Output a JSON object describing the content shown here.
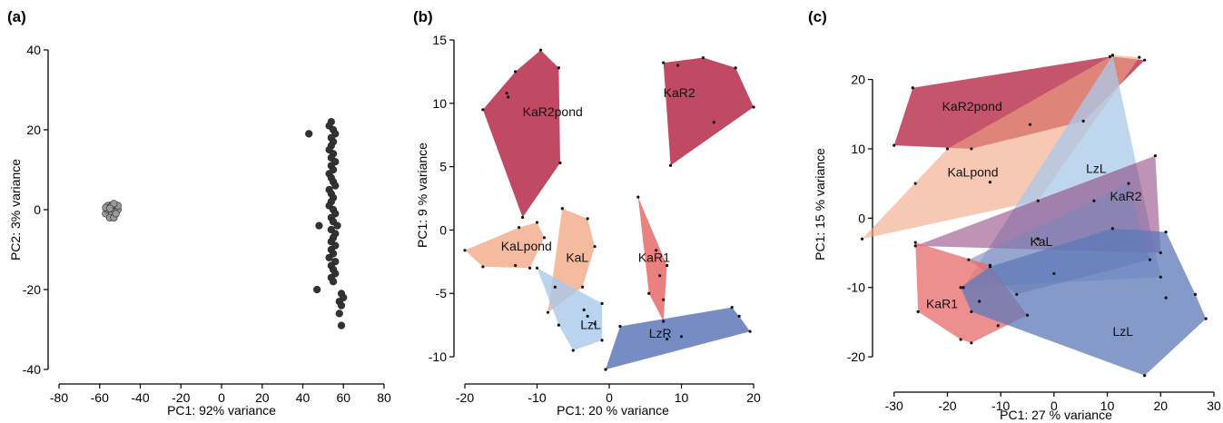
{
  "chart_data": [
    {
      "panel": "(a)",
      "type": "scatter",
      "xlabel": "PC1: 92% variance",
      "ylabel": "PC2: 3% variance",
      "xlim": [
        -80,
        80
      ],
      "ylim": [
        -40,
        40
      ],
      "xticks": [
        -80,
        -60,
        -40,
        -20,
        0,
        20,
        40,
        60,
        80
      ],
      "yticks": [
        -40,
        -20,
        0,
        20,
        40
      ],
      "series": [
        {
          "color": "#999999",
          "points": [
            [
              -57,
              -1
            ],
            [
              -56,
              0
            ],
            [
              -55,
              1
            ],
            [
              -54,
              -1
            ],
            [
              -53,
              0
            ],
            [
              -52,
              1
            ],
            [
              -51,
              0
            ],
            [
              -55,
              -2
            ],
            [
              -53,
              -2
            ],
            [
              -56,
              1
            ],
            [
              -54,
              1
            ],
            [
              -52,
              -1
            ],
            [
              -51,
              1
            ],
            [
              -57,
              0.5
            ],
            [
              -53,
              1.5
            ],
            [
              -55,
              0.3
            ]
          ]
        },
        {
          "color": "#333333",
          "points": [
            [
              54,
              22
            ],
            [
              53,
              21
            ],
            [
              55,
              20
            ],
            [
              56,
              19
            ],
            [
              43,
              19
            ],
            [
              54,
              18
            ],
            [
              55,
              17
            ],
            [
              54,
              16
            ],
            [
              53,
              15
            ],
            [
              55,
              14
            ],
            [
              54,
              13
            ],
            [
              56,
              12
            ],
            [
              54,
              11
            ],
            [
              55,
              10
            ],
            [
              53,
              9
            ],
            [
              54,
              8
            ],
            [
              55,
              7
            ],
            [
              56,
              6
            ],
            [
              53,
              5
            ],
            [
              54,
              4
            ],
            [
              55,
              3
            ],
            [
              54,
              2
            ],
            [
              53,
              1
            ],
            [
              55,
              0
            ],
            [
              56,
              -1
            ],
            [
              54,
              -2
            ],
            [
              55,
              -3
            ],
            [
              57,
              -4
            ],
            [
              48,
              -4
            ],
            [
              54,
              -5
            ],
            [
              56,
              -6
            ],
            [
              55,
              -7
            ],
            [
              54,
              -8
            ],
            [
              56,
              -9
            ],
            [
              54,
              -10
            ],
            [
              55,
              -11
            ],
            [
              53,
              -12
            ],
            [
              56,
              -13
            ],
            [
              54,
              -14
            ],
            [
              55,
              -15
            ],
            [
              56,
              -16
            ],
            [
              54,
              -17
            ],
            [
              55,
              -18
            ],
            [
              47,
              -20
            ],
            [
              59,
              -21
            ],
            [
              60,
              -22
            ],
            [
              58,
              -23
            ],
            [
              59,
              -24
            ],
            [
              58,
              -26
            ],
            [
              59,
              -29
            ]
          ]
        }
      ]
    },
    {
      "panel": "(b)",
      "type": "scatter",
      "xlabel": "PC1:  20 % variance",
      "ylabel": "PC1:  9 % variance",
      "xlim": [
        -20,
        21
      ],
      "ylim": [
        -11,
        15
      ],
      "xticks": [
        -20,
        -10,
        0,
        10,
        20
      ],
      "yticks": [
        -10,
        -5,
        0,
        5,
        10,
        15
      ],
      "groups": [
        {
          "name": "KaR2pond",
          "label": "KaR2pond",
          "label_pos": [
            -12,
            9
          ],
          "color": "#b52a48",
          "opacity": 0.85,
          "points": [
            [
              -17.5,
              9.5
            ],
            [
              -13,
              12.5
            ],
            [
              -9.5,
              14.2
            ],
            [
              -7,
              12.8
            ],
            [
              -6.8,
              5.3
            ],
            [
              -12,
              1
            ],
            [
              -14.2,
              10.8
            ],
            [
              -14,
              10.5
            ]
          ]
        },
        {
          "name": "KaR2",
          "label": "KaR2",
          "label_pos": [
            7.5,
            10.5
          ],
          "color": "#b52a48",
          "opacity": 0.85,
          "points": [
            [
              7.5,
              13.2
            ],
            [
              9.5,
              13
            ],
            [
              13,
              13.6
            ],
            [
              17.5,
              12.8
            ],
            [
              20,
              9.7
            ],
            [
              14.5,
              8.5
            ],
            [
              8.5,
              5.1
            ]
          ]
        },
        {
          "name": "KaLpond",
          "label": "KaLpond",
          "label_pos": [
            -15,
            -1.6
          ],
          "color": "#f2a482",
          "opacity": 0.75,
          "points": [
            [
              -20,
              -1.6
            ],
            [
              -12.5,
              0.2
            ],
            [
              -10,
              0.6
            ],
            [
              -9,
              -0.6
            ],
            [
              -11,
              -3
            ],
            [
              -17.5,
              -2.9
            ],
            [
              -13,
              -2.8
            ]
          ]
        },
        {
          "name": "KaL",
          "label": "KaL",
          "label_pos": [
            -6,
            -2.5
          ],
          "color": "#f2a482",
          "opacity": 0.75,
          "points": [
            [
              -6.5,
              1.7
            ],
            [
              -3,
              0.9
            ],
            [
              -2,
              -1.3
            ],
            [
              -3.7,
              -4.5
            ],
            [
              -8.5,
              -6.5
            ],
            [
              -7.5,
              -4.5
            ]
          ]
        },
        {
          "name": "LzL",
          "label": "LzL",
          "label_pos": [
            -4,
            -7.8
          ],
          "color": "#a9c8ea",
          "opacity": 0.8,
          "points": [
            [
              -10,
              -3
            ],
            [
              -1,
              -5.8
            ],
            [
              -1,
              -8.7
            ],
            [
              -5,
              -9.5
            ],
            [
              -7,
              -7.5
            ],
            [
              -3,
              -6.8
            ],
            [
              -3.5,
              -6.3
            ],
            [
              -2,
              -7.4
            ]
          ]
        },
        {
          "name": "KaR1",
          "label": "KaR1",
          "label_pos": [
            4,
            -2.5
          ],
          "color": "#e86a6a",
          "opacity": 0.85,
          "points": [
            [
              4,
              2.6
            ],
            [
              6.5,
              -1.6
            ],
            [
              8,
              -2.8
            ],
            [
              7.5,
              -5.5
            ],
            [
              7.5,
              -7.2
            ],
            [
              5.5,
              -5
            ],
            [
              7,
              -3.6
            ]
          ]
        },
        {
          "name": "LzR",
          "label": "LzR",
          "label_pos": [
            5.5,
            -8.5
          ],
          "color": "#5e78b8",
          "opacity": 0.85,
          "points": [
            [
              -0.5,
              -11
            ],
            [
              1.5,
              -7.6
            ],
            [
              17,
              -6.1
            ],
            [
              19.5,
              -8
            ],
            [
              18,
              -6.8
            ],
            [
              10,
              -8.4
            ],
            [
              8,
              -8.6
            ],
            [
              -0.5,
              -11
            ]
          ]
        }
      ]
    },
    {
      "panel": "(c)",
      "type": "scatter",
      "xlabel": "PC1:  27 % variance",
      "ylabel": "PC1:  15 % variance",
      "xlim": [
        -32,
        30
      ],
      "ylim": [
        -23,
        24
      ],
      "xticks": [
        -30,
        -20,
        -10,
        0,
        10,
        20,
        30
      ],
      "yticks": [
        -20,
        -10,
        0,
        10,
        20
      ],
      "groups": [
        {
          "name": "KaR2pond",
          "label": "KaR2pond",
          "label_pos": [
            -21,
            15.5
          ],
          "color": "#b52a48",
          "opacity": 0.8,
          "points": [
            [
              -26.5,
              18.8
            ],
            [
              10.5,
              23.3
            ],
            [
              17,
              22.8
            ],
            [
              -30,
              10.5
            ],
            [
              -15.5,
              10
            ],
            [
              -4.5,
              13.5
            ],
            [
              5.5,
              14
            ]
          ]
        },
        {
          "name": "KaLpond",
          "label": "KaLpond",
          "label_pos": [
            -20,
            6
          ],
          "color": "#f2a482",
          "opacity": 0.6,
          "points": [
            [
              -36,
              -3
            ],
            [
              -26,
              5
            ],
            [
              -20,
              10
            ],
            [
              16,
              23.2
            ],
            [
              -12,
              5.2
            ],
            [
              -3,
              2.5
            ],
            [
              11,
              23.5
            ]
          ]
        },
        {
          "name": "LzL",
          "label": "LzL",
          "label_pos": [
            6,
            6.5
          ],
          "color": "#a9c8ea",
          "opacity": 0.75,
          "points": [
            [
              -17,
              -10
            ],
            [
              11,
              23.5
            ],
            [
              20,
              -8.5
            ],
            [
              0,
              -8
            ]
          ]
        },
        {
          "name": "KaR2",
          "label": "KaR2",
          "label_pos": [
            10.5,
            2.5
          ],
          "color": "#8a3a78",
          "opacity": 0.55,
          "points": [
            [
              -26,
              -4
            ],
            [
              19,
              9
            ],
            [
              20,
              -5
            ],
            [
              -3,
              -3
            ],
            [
              7.5,
              2.5
            ]
          ]
        },
        {
          "name": "KaL",
          "label": "KaL",
          "label_pos": [
            -4.5,
            -4
          ],
          "color": "#7c86b8",
          "opacity": 0.6,
          "points": [
            [
              -16,
              -6
            ],
            [
              14,
              5
            ],
            [
              18,
              -6
            ],
            [
              -7,
              -11
            ]
          ]
        },
        {
          "name": "KaR1",
          "label": "KaR1",
          "label_pos": [
            -24,
            -13
          ],
          "color": "#e86a6a",
          "opacity": 0.75,
          "points": [
            [
              -25.5,
              -13.5
            ],
            [
              -26,
              -3.5
            ],
            [
              -12,
              -6.8
            ],
            [
              -14,
              -12
            ],
            [
              -17.5,
              -17.5
            ],
            [
              -15.5,
              -18
            ],
            [
              -10.5,
              -15.5
            ],
            [
              -5,
              -14
            ]
          ]
        },
        {
          "name": "LzL",
          "label": "LzL",
          "label_pos": [
            11,
            -17
          ],
          "color": "#5e78b8",
          "opacity": 0.75,
          "points": [
            [
              -17.5,
              -10
            ],
            [
              -12,
              -7
            ],
            [
              11,
              -1.5
            ],
            [
              21,
              -2
            ],
            [
              21,
              -11.5
            ],
            [
              26.5,
              -11
            ],
            [
              28.5,
              -14.5
            ],
            [
              17,
              -22.7
            ],
            [
              -15.5,
              -13.5
            ]
          ]
        }
      ]
    }
  ],
  "panels": {
    "a": {
      "label": "(a)"
    },
    "b": {
      "label": "(b)"
    },
    "c": {
      "label": "(c)"
    }
  }
}
